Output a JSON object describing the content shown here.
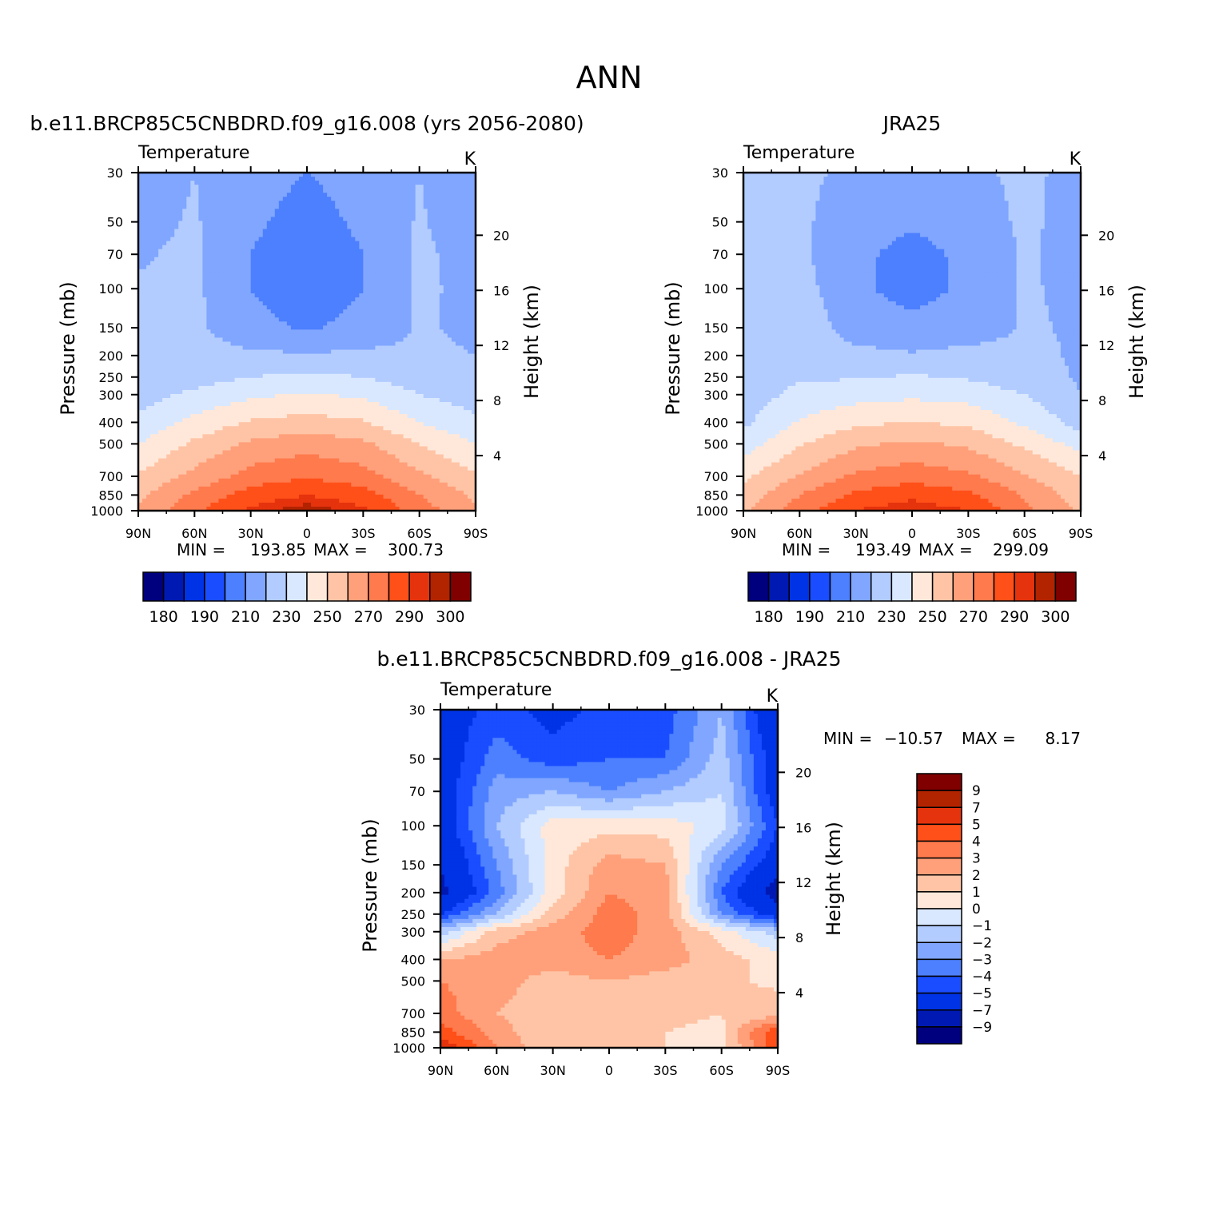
{
  "figure": {
    "title": "ANN"
  },
  "colors": {
    "temperature_palette": [
      "#00007f",
      "#0019b2",
      "#0033e5",
      "#1a4dff",
      "#4d80ff",
      "#80a6ff",
      "#b2ccff",
      "#d9e8ff",
      "#ffe8d9",
      "#ffc4a6",
      "#ffa07a",
      "#ff7a4d",
      "#ff5019",
      "#e5330d",
      "#b22300",
      "#800000"
    ],
    "difference_palette": [
      "#00007f",
      "#0019b2",
      "#0033e5",
      "#1a4dff",
      "#4d80ff",
      "#80a6ff",
      "#b2ccff",
      "#d9e8ff",
      "#ffe8d9",
      "#ffc4a6",
      "#ffa07a",
      "#ff7a4d",
      "#ff5019",
      "#e5330d",
      "#b22300",
      "#800000"
    ]
  },
  "chart_data": [
    {
      "type": "heatmap",
      "title": "b.e11.BRCP85C5CNBDRD.f09_g16.008 (yrs 2056-2080)",
      "variable": "Temperature",
      "units": "K",
      "xlabel": "",
      "ylabel": "Pressure (mb)",
      "y2label": "Height (km)",
      "x_ticks": [
        "90N",
        "60N",
        "30N",
        "0",
        "30S",
        "60S",
        "90S"
      ],
      "y_ticks": [
        "30",
        "50",
        "70",
        "100",
        "150",
        "200",
        "250",
        "300",
        "400",
        "500",
        "700",
        "850",
        "1000"
      ],
      "y2_ticks": [
        "20",
        "16",
        "12",
        "8",
        "4"
      ],
      "y_scale": "log",
      "ylim": [
        1000,
        30
      ],
      "xlim": [
        "90N",
        "90S"
      ],
      "stats": {
        "min_label": "MIN =",
        "min": "193.85",
        "max_label": "MAX =",
        "max": "300.73"
      },
      "colorbar": {
        "orientation": "horizontal",
        "levels": [
          180,
          185,
          190,
          200,
          210,
          220,
          230,
          240,
          250,
          260,
          270,
          280,
          290,
          295,
          300
        ],
        "labels": [
          "180",
          "190",
          "210",
          "230",
          "250",
          "270",
          "290",
          "300"
        ]
      },
      "x": [
        -90,
        -60,
        -30,
        0,
        30,
        60,
        90
      ],
      "y": [
        30,
        50,
        70,
        100,
        150,
        200,
        250,
        300,
        400,
        500,
        700,
        850,
        1000
      ],
      "z": [
        [
          215,
          220,
          214,
          210,
          214,
          220,
          213
        ],
        [
          217,
          221,
          212,
          206,
          212,
          221,
          214
        ],
        [
          219,
          222,
          210,
          203,
          210,
          222,
          216
        ],
        [
          221,
          222,
          210,
          203,
          210,
          222,
          217
        ],
        [
          221,
          222,
          213,
          209,
          213,
          221,
          218
        ],
        [
          222,
          224,
          222,
          221,
          222,
          222,
          220
        ],
        [
          224,
          226,
          230,
          232,
          230,
          225,
          223
        ],
        [
          226,
          232,
          238,
          241,
          238,
          230,
          225
        ],
        [
          232,
          243,
          251,
          254,
          251,
          240,
          232
        ],
        [
          240,
          252,
          262,
          266,
          262,
          250,
          240
        ],
        [
          251,
          263,
          274,
          279,
          274,
          262,
          251
        ],
        [
          258,
          272,
          285,
          290,
          285,
          270,
          258
        ],
        [
          262,
          278,
          292,
          299,
          292,
          275,
          262
        ]
      ]
    },
    {
      "type": "heatmap",
      "title": "JRA25",
      "variable": "Temperature",
      "units": "K",
      "xlabel": "",
      "ylabel": "Pressure (mb)",
      "y2label": "Height (km)",
      "x_ticks": [
        "90N",
        "60N",
        "30N",
        "0",
        "30S",
        "60S",
        "90S"
      ],
      "y_ticks": [
        "30",
        "50",
        "70",
        "100",
        "150",
        "200",
        "250",
        "300",
        "400",
        "500",
        "700",
        "850",
        "1000"
      ],
      "y2_ticks": [
        "20",
        "16",
        "12",
        "8",
        "4"
      ],
      "y_scale": "log",
      "ylim": [
        1000,
        30
      ],
      "xlim": [
        "90N",
        "90S"
      ],
      "stats": {
        "min_label": "MIN =",
        "min": "193.49",
        "max_label": "MAX =",
        "max": "299.09"
      },
      "colorbar": {
        "orientation": "horizontal",
        "levels": [
          180,
          185,
          190,
          200,
          210,
          220,
          230,
          240,
          250,
          260,
          270,
          280,
          290,
          295,
          300
        ],
        "labels": [
          "180",
          "190",
          "210",
          "230",
          "250",
          "270",
          "290",
          "300"
        ]
      },
      "x": [
        -90,
        -60,
        -30,
        0,
        30,
        60,
        90
      ],
      "y": [
        30,
        50,
        70,
        100,
        150,
        200,
        250,
        300,
        400,
        500,
        700,
        850,
        1000
      ],
      "z": [
        [
          221,
          222,
          218,
          215,
          218,
          222,
          217
        ],
        [
          222,
          222,
          214,
          211,
          214,
          222,
          216
        ],
        [
          224,
          222,
          212,
          207,
          212,
          221,
          217
        ],
        [
          226,
          224,
          212,
          206,
          212,
          221,
          218
        ],
        [
          229,
          227,
          215,
          213,
          215,
          221,
          219
        ],
        [
          228,
          226,
          223,
          221,
          223,
          222,
          219
        ],
        [
          225,
          229,
          229,
          231,
          229,
          224,
          219
        ],
        [
          224,
          233,
          236,
          238,
          236,
          230,
          220
        ],
        [
          228,
          241,
          248,
          250,
          248,
          238,
          226
        ],
        [
          235,
          249,
          258,
          262,
          258,
          248,
          236
        ],
        [
          248,
          261,
          272,
          276,
          272,
          261,
          250
        ],
        [
          254,
          270,
          282,
          287,
          282,
          269,
          255
        ],
        [
          258,
          275,
          290,
          296,
          290,
          273,
          258
        ]
      ]
    },
    {
      "type": "heatmap",
      "title": "b.e11.BRCP85C5CNBDRD.f09_g16.008 - JRA25",
      "variable": "Temperature",
      "units": "K",
      "xlabel": "",
      "ylabel": "Pressure (mb)",
      "y2label": "Height (km)",
      "x_ticks": [
        "90N",
        "60N",
        "30N",
        "0",
        "30S",
        "60S",
        "90S"
      ],
      "y_ticks": [
        "30",
        "50",
        "70",
        "100",
        "150",
        "200",
        "250",
        "300",
        "400",
        "500",
        "700",
        "850",
        "1000"
      ],
      "y2_ticks": [
        "20",
        "16",
        "12",
        "8",
        "4"
      ],
      "y_scale": "log",
      "ylim": [
        1000,
        30
      ],
      "xlim": [
        "90N",
        "90S"
      ],
      "stats": {
        "min_label": "MIN =",
        "min": "-10.57",
        "max_label": "MAX =",
        "max": "8.17"
      },
      "colorbar": {
        "orientation": "vertical",
        "levels": [
          -9,
          -7,
          -5,
          -4,
          -3,
          -2,
          -1,
          0,
          1,
          2,
          3,
          4,
          5,
          7,
          9
        ],
        "labels": [
          "9",
          "7",
          "5",
          "4",
          "3",
          "2",
          "1",
          "0",
          "-1",
          "-2",
          "-3",
          "-4",
          "-5",
          "-7",
          "-9"
        ]
      },
      "x": [
        -90,
        -60,
        -30,
        0,
        30,
        60,
        90
      ],
      "y": [
        30,
        50,
        70,
        100,
        150,
        200,
        250,
        300,
        400,
        500,
        700,
        850,
        1000
      ],
      "z": [
        [
          -6,
          -4.5,
          -5.5,
          -4.5,
          -4.5,
          -2,
          -7
        ],
        [
          -6,
          -3.5,
          -4.5,
          -4,
          -4,
          -1.5,
          -6
        ],
        [
          -6,
          -2.5,
          -2,
          -3,
          -2,
          -1,
          -6
        ],
        [
          -6,
          -2,
          0.5,
          0.6,
          0.6,
          -0.5,
          -5
        ],
        [
          -7,
          -3,
          0.5,
          2.5,
          2,
          -3,
          -6
        ],
        [
          -7.5,
          -3.5,
          0.5,
          3,
          2.5,
          -4,
          -8
        ],
        [
          -5,
          -2,
          1.5,
          3.5,
          2.5,
          -3,
          -6
        ],
        [
          -1.5,
          1.5,
          2.5,
          3.5,
          2.5,
          0.5,
          -1.5
        ],
        [
          2,
          2.5,
          2.5,
          3,
          2.5,
          1.5,
          0.5
        ],
        [
          3,
          2.5,
          1.5,
          2,
          1.5,
          1.2,
          0.8
        ],
        [
          3.5,
          2,
          1.2,
          1.3,
          1.2,
          1,
          1.5
        ],
        [
          4.5,
          2.5,
          1,
          1.2,
          1,
          0.8,
          5
        ],
        [
          6,
          3,
          1,
          1.2,
          1,
          0.5,
          5
        ]
      ]
    }
  ]
}
